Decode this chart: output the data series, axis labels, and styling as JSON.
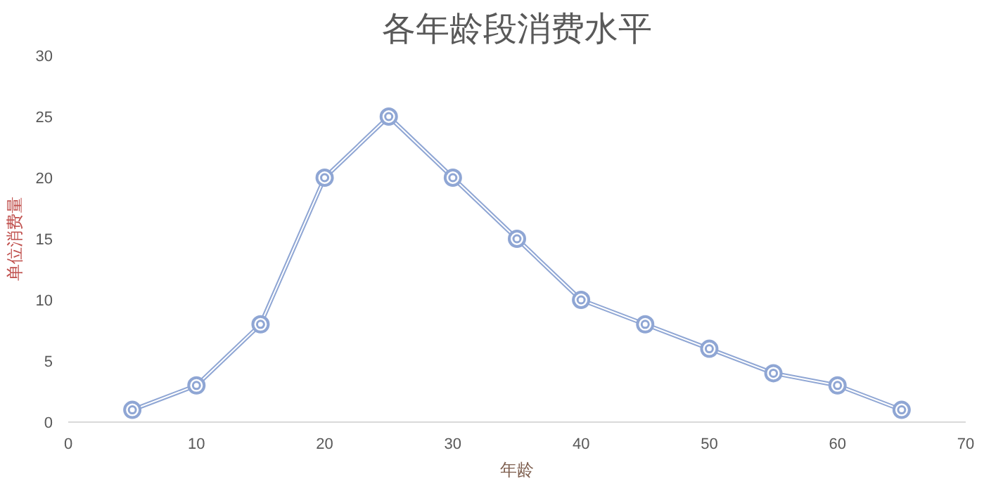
{
  "chart_data": {
    "type": "line",
    "title": "各年龄段消费水平",
    "xlabel": "年龄",
    "ylabel": "单位消费量",
    "x": [
      5,
      10,
      15,
      20,
      25,
      30,
      35,
      40,
      45,
      50,
      55,
      60,
      65
    ],
    "series": [
      {
        "color": "#8fa6d4",
        "values": [
          1,
          3,
          8,
          20,
          25,
          20,
          15,
          10,
          8,
          6,
          4,
          3,
          1
        ]
      }
    ],
    "xlim": [
      0,
      70
    ],
    "xticks": [
      0,
      10,
      20,
      30,
      40,
      50,
      60,
      70
    ],
    "ylim": [
      0,
      30
    ],
    "yticks": [
      0,
      5,
      10,
      15,
      20,
      25,
      30
    ],
    "grid": false,
    "marker": "circle",
    "line_style": "solid"
  }
}
